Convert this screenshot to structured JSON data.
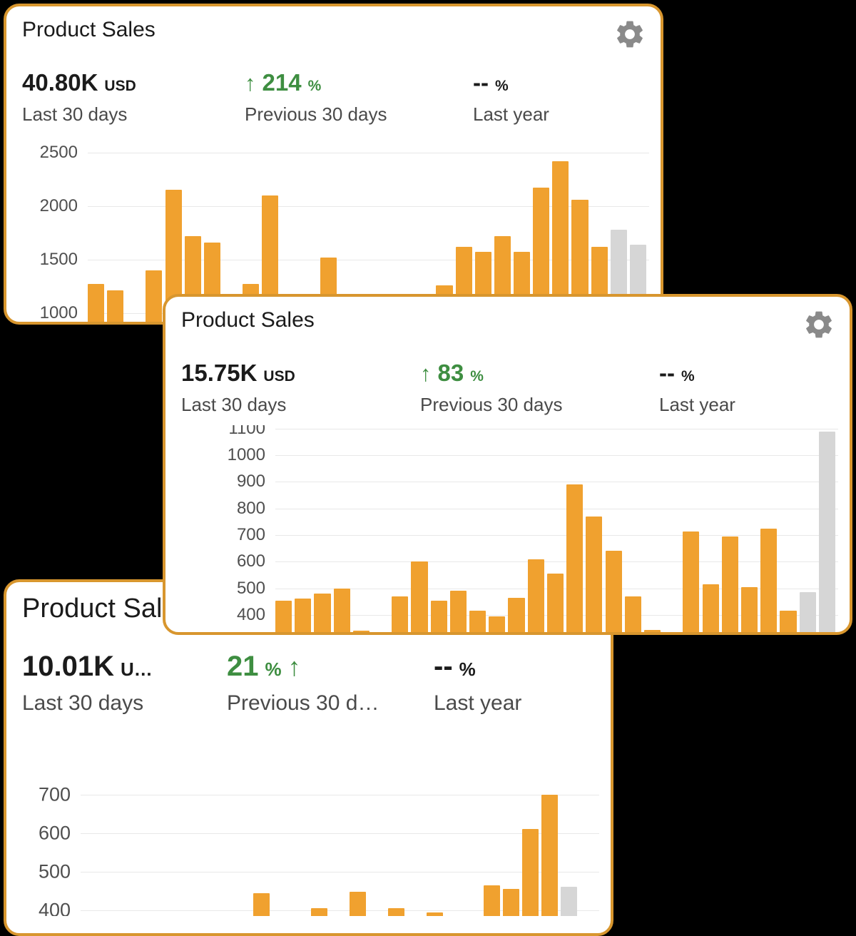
{
  "colors": {
    "card_border": "#D8962E",
    "bar": "#F0A12F",
    "bar_muted": "#D6D6D6",
    "positive": "#3E8E41",
    "text_primary": "#1B1B1B",
    "text_secondary": "#4A4A4A",
    "axis_label": "#4F4F4F",
    "gridline": "#E8E8E8",
    "gear": "#8A8A8A"
  },
  "cards": [
    {
      "title": "Product Sales",
      "primary": {
        "value": "40.80K",
        "unit": "USD",
        "label": "Last 30 days"
      },
      "change": {
        "arrow": "↑",
        "value": "214",
        "unit": "%",
        "label": "Previous 30 days"
      },
      "year": {
        "value": "--",
        "unit": "%",
        "label": "Last year"
      }
    },
    {
      "title": "Product Sales",
      "primary": {
        "value": "15.75K",
        "unit": "USD",
        "label": "Last 30 days"
      },
      "change": {
        "arrow": "↑",
        "value": "83",
        "unit": "%",
        "label": "Previous 30 days"
      },
      "year": {
        "value": "--",
        "unit": "%",
        "label": "Last year"
      }
    },
    {
      "title": "Product Sales",
      "primary": {
        "value": "10.01K",
        "unit": "U…",
        "label": "Last 30 days"
      },
      "change": {
        "value": "21",
        "unit": "%",
        "arrow": "↑",
        "label": "Previous 30 d…"
      },
      "year": {
        "value": "--",
        "unit": "%",
        "label": "Last year"
      }
    }
  ],
  "chart_data": [
    {
      "type": "bar",
      "title": "Product Sales",
      "xlabel": "",
      "ylabel": "",
      "grid": true,
      "legend": "none",
      "ticks": [
        1000,
        1500,
        2000,
        2500
      ],
      "ymin": 890,
      "ymax": 2625,
      "values": [
        1270,
        1210,
        920,
        1400,
        2150,
        1720,
        1660,
        null,
        1270,
        2100,
        null,
        null,
        1520,
        null,
        null,
        null,
        null,
        null,
        1260,
        1620,
        1570,
        1720,
        1570,
        2170,
        2420,
        2060,
        1620,
        1780,
        1640
      ],
      "muted_from": 27
    },
    {
      "type": "bar",
      "title": "Product Sales",
      "xlabel": "",
      "ylabel": "",
      "grid": true,
      "legend": "none",
      "ticks": [
        400,
        500,
        600,
        700,
        800,
        900,
        1000,
        1100
      ],
      "ymin": 325,
      "ymax": 1113,
      "values": [
        455,
        462,
        480,
        500,
        340,
        null,
        470,
        600,
        455,
        490,
        415,
        395,
        465,
        610,
        555,
        890,
        770,
        640,
        470,
        345,
        null,
        715,
        515,
        695,
        505,
        725,
        415,
        485,
        1090
      ],
      "muted_from": 27
    },
    {
      "type": "bar",
      "title": "Product Sales",
      "xlabel": "",
      "ylabel": "",
      "grid": true,
      "legend": "none",
      "ticks": [
        400,
        500,
        600,
        700
      ],
      "ymin": 385,
      "ymax": 755,
      "values": [
        null,
        null,
        null,
        null,
        null,
        null,
        null,
        null,
        null,
        445,
        null,
        null,
        405,
        null,
        448,
        null,
        405,
        null,
        395,
        null,
        null,
        465,
        455,
        610,
        700,
        460,
        null
      ],
      "muted_from": 25
    }
  ]
}
